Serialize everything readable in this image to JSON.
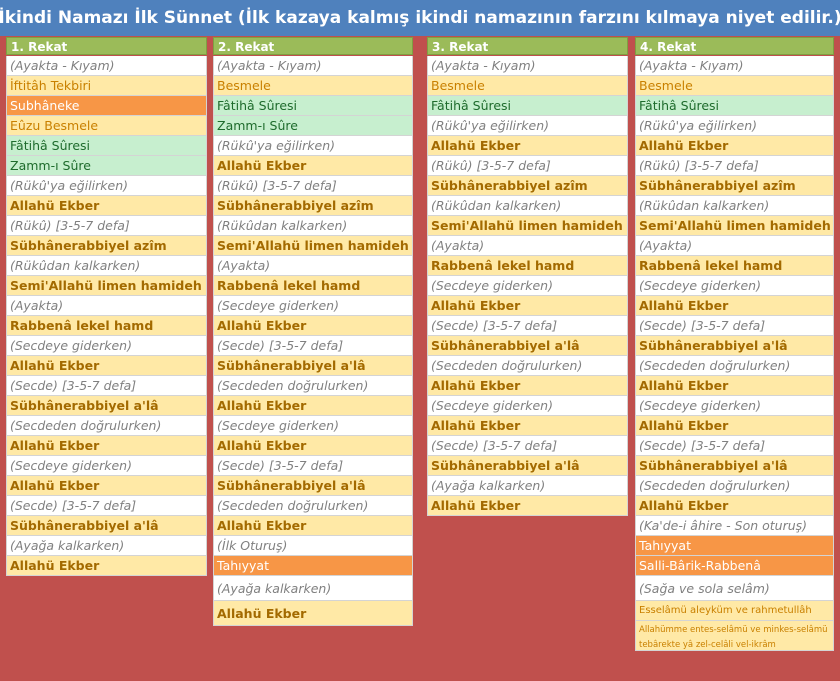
{
  "title": "İkindi Namazı İlk Sünnet (İlk kazaya kalmış ikindi namazının farzını kılmaya niyet edilir.)",
  "columns": [
    {
      "header": "1. Rekat",
      "rows": [
        {
          "t": "(Ayakta - Kıyam)",
          "s": "gray"
        },
        {
          "t": "İftitâh Tekbiri",
          "s": "beige"
        },
        {
          "t": "Subhâneke",
          "s": "orange"
        },
        {
          "t": "Eûzu Besmele",
          "s": "beige"
        },
        {
          "t": "Fâtihâ Sûresi",
          "s": "green"
        },
        {
          "t": "Zamm-ı Sûre",
          "s": "green"
        },
        {
          "t": "(Rükû'ya eğilirken)",
          "s": "gray"
        },
        {
          "t": "Allahü Ekber",
          "s": "beige-b"
        },
        {
          "t": "(Rükû)  [3-5-7 defa]",
          "s": "gray"
        },
        {
          "t": "Sübhânerabbiyel azîm",
          "s": "beige-b"
        },
        {
          "t": "(Rükûdan kalkarken)",
          "s": "gray"
        },
        {
          "t": "Semi'Allahü limen hamideh",
          "s": "beige-b"
        },
        {
          "t": "(Ayakta)",
          "s": "gray"
        },
        {
          "t": "Rabbenâ lekel hamd",
          "s": "beige-b"
        },
        {
          "t": "(Secdeye giderken)",
          "s": "gray"
        },
        {
          "t": "Allahü Ekber",
          "s": "beige-b"
        },
        {
          "t": "(Secde) [3-5-7 defa]",
          "s": "gray"
        },
        {
          "t": "Sübhânerabbiyel a'lâ",
          "s": "beige-b"
        },
        {
          "t": "(Secdeden doğrulurken)",
          "s": "gray"
        },
        {
          "t": "Allahü Ekber",
          "s": "beige-b"
        },
        {
          "t": "(Secdeye giderken)",
          "s": "gray"
        },
        {
          "t": "Allahü Ekber",
          "s": "beige-b"
        },
        {
          "t": "(Secde) [3-5-7 defa]",
          "s": "gray"
        },
        {
          "t": "Sübhânerabbiyel a'lâ",
          "s": "beige-b"
        },
        {
          "t": "(Ayağa kalkarken)",
          "s": "gray"
        },
        {
          "t": "Allahü Ekber",
          "s": "beige-b"
        }
      ]
    },
    {
      "header": "2. Rekat",
      "rows": [
        {
          "t": "(Ayakta - Kıyam)",
          "s": "gray"
        },
        {
          "t": "Besmele",
          "s": "beige"
        },
        {
          "t": "Fâtihâ Sûresi",
          "s": "green"
        },
        {
          "t": "Zamm-ı Sûre",
          "s": "green"
        },
        {
          "t": "(Rükû'ya eğilirken)",
          "s": "gray"
        },
        {
          "t": "Allahü Ekber",
          "s": "beige-b"
        },
        {
          "t": "(Rükû)  [3-5-7 defa]",
          "s": "gray"
        },
        {
          "t": "Sübhânerabbiyel azîm",
          "s": "beige-b"
        },
        {
          "t": "(Rükûdan kalkarken)",
          "s": "gray"
        },
        {
          "t": "Semi'Allahü limen hamideh",
          "s": "beige-b"
        },
        {
          "t": "(Ayakta)",
          "s": "gray"
        },
        {
          "t": "Rabbenâ lekel hamd",
          "s": "beige-b"
        },
        {
          "t": "(Secdeye giderken)",
          "s": "gray"
        },
        {
          "t": "Allahü Ekber",
          "s": "beige-b"
        },
        {
          "t": "(Secde) [3-5-7 defa]",
          "s": "gray"
        },
        {
          "t": "Sübhânerabbiyel a'lâ",
          "s": "beige-b"
        },
        {
          "t": "(Secdeden doğrulurken)",
          "s": "gray"
        },
        {
          "t": "Allahü Ekber",
          "s": "beige-b"
        },
        {
          "t": "(Secdeye giderken)",
          "s": "gray"
        },
        {
          "t": "Allahü Ekber",
          "s": "beige-b"
        },
        {
          "t": "(Secde) [3-5-7 defa]",
          "s": "gray"
        },
        {
          "t": "Sübhânerabbiyel a'lâ",
          "s": "beige-b"
        },
        {
          "t": "(Secdeden doğrulurken)",
          "s": "gray"
        },
        {
          "t": "Allahü Ekber",
          "s": "beige-b"
        },
        {
          "t": "(İlk Oturuş)",
          "s": "gray"
        },
        {
          "t": "Tahıyyat",
          "s": "orange"
        },
        {
          "t": "(Ayağa kalkarken)",
          "s": "gray",
          "h": 2
        },
        {
          "t": "Allahü Ekber",
          "s": "beige-b",
          "h": 2
        }
      ]
    },
    {
      "header": "3. Rekat",
      "rows": [
        {
          "t": "(Ayakta - Kıyam)",
          "s": "gray"
        },
        {
          "t": "Besmele",
          "s": "beige"
        },
        {
          "t": "Fâtihâ Sûresi",
          "s": "green"
        },
        {
          "t": "(Rükû'ya eğilirken)",
          "s": "gray"
        },
        {
          "t": "Allahü Ekber",
          "s": "beige-b"
        },
        {
          "t": "(Rükû)  [3-5-7 defa]",
          "s": "gray"
        },
        {
          "t": "Sübhânerabbiyel azîm",
          "s": "beige-b"
        },
        {
          "t": "(Rükûdan kalkarken)",
          "s": "gray"
        },
        {
          "t": "Semi'Allahü limen hamideh",
          "s": "beige-b"
        },
        {
          "t": "(Ayakta)",
          "s": "gray"
        },
        {
          "t": "Rabbenâ lekel hamd",
          "s": "beige-b"
        },
        {
          "t": "(Secdeye giderken)",
          "s": "gray"
        },
        {
          "t": "Allahü Ekber",
          "s": "beige-b"
        },
        {
          "t": "(Secde) [3-5-7 defa]",
          "s": "gray"
        },
        {
          "t": "Sübhânerabbiyel a'lâ",
          "s": "beige-b"
        },
        {
          "t": "(Secdeden doğrulurken)",
          "s": "gray"
        },
        {
          "t": "Allahü Ekber",
          "s": "beige-b"
        },
        {
          "t": "(Secdeye giderken)",
          "s": "gray"
        },
        {
          "t": "Allahü Ekber",
          "s": "beige-b"
        },
        {
          "t": "(Secde) [3-5-7 defa]",
          "s": "gray"
        },
        {
          "t": "Sübhânerabbiyel a'lâ",
          "s": "beige-b"
        },
        {
          "t": "(Ayağa kalkarken)",
          "s": "gray"
        },
        {
          "t": "Allahü Ekber",
          "s": "beige-b"
        }
      ]
    },
    {
      "header": "4. Rekat",
      "rows": [
        {
          "t": "(Ayakta - Kıyam)",
          "s": "gray"
        },
        {
          "t": "Besmele",
          "s": "beige"
        },
        {
          "t": "Fâtihâ Sûresi",
          "s": "green"
        },
        {
          "t": "(Rükû'ya eğilirken)",
          "s": "gray"
        },
        {
          "t": "Allahü Ekber",
          "s": "beige-b"
        },
        {
          "t": "(Rükû)  [3-5-7 defa]",
          "s": "gray"
        },
        {
          "t": "Sübhânerabbiyel azîm",
          "s": "beige-b"
        },
        {
          "t": "(Rükûdan kalkarken)",
          "s": "gray"
        },
        {
          "t": "Semi'Allahü limen hamideh",
          "s": "beige-b"
        },
        {
          "t": "(Ayakta)",
          "s": "gray"
        },
        {
          "t": "Rabbenâ lekel hamd",
          "s": "beige-b"
        },
        {
          "t": "(Secdeye giderken)",
          "s": "gray"
        },
        {
          "t": "Allahü Ekber",
          "s": "beige-b"
        },
        {
          "t": "(Secde) [3-5-7 defa]",
          "s": "gray"
        },
        {
          "t": "Sübhânerabbiyel a'lâ",
          "s": "beige-b"
        },
        {
          "t": "(Secdeden doğrulurken)",
          "s": "gray"
        },
        {
          "t": "Allahü Ekber",
          "s": "beige-b"
        },
        {
          "t": "(Secdeye giderken)",
          "s": "gray"
        },
        {
          "t": "Allahü Ekber",
          "s": "beige-b"
        },
        {
          "t": "(Secde) [3-5-7 defa]",
          "s": "gray"
        },
        {
          "t": "Sübhânerabbiyel a'lâ",
          "s": "beige-b"
        },
        {
          "t": "(Secdeden doğrulurken)",
          "s": "gray"
        },
        {
          "t": "Allahü Ekber",
          "s": "beige-b"
        },
        {
          "t": "(Ka'de-i âhire - Son oturuş)",
          "s": "gray"
        },
        {
          "t": "Tahıyyat",
          "s": "orange"
        },
        {
          "t": "Salli-Bârik-Rabbenâ",
          "s": "orange"
        },
        {
          "t": "(Sağa ve sola selâm)",
          "s": "gray",
          "h": 2
        },
        {
          "t": "Esselâmü aleyküm ve rahmetullâh",
          "s": "beige",
          "small": true
        },
        {
          "t": "Allahümme entes-selâmü ve minkes-selâmü tebârekte yâ zel-celâli vel-ikrâm",
          "s": "beige",
          "tiny": true,
          "h": 3
        }
      ]
    }
  ]
}
